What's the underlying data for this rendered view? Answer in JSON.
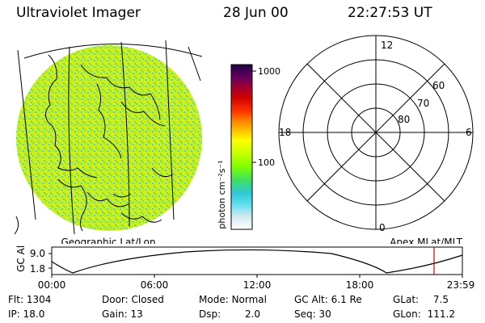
{
  "header": {
    "title": "Ultraviolet Imager",
    "date": "28 Jun 00",
    "time": "22:27:53 UT"
  },
  "globe": {
    "caption": "Geographic Lat/Lon"
  },
  "colorbar": {
    "unit_label": "photon cm⁻²s⁻¹",
    "ticks": [
      "1000",
      "100"
    ],
    "colors": [
      "#ffffff",
      "#d0e8f0",
      "#60e0f0",
      "#30c8d8",
      "#40e060",
      "#80ff00",
      "#c8ff00",
      "#ffff00",
      "#ffc000",
      "#ff8000",
      "#ff3000",
      "#d00000",
      "#a00030",
      "#600060",
      "#200040"
    ]
  },
  "polar": {
    "caption": "Apex MLat/MLT",
    "mlt_labels": {
      "top": "12",
      "left": "18",
      "right": "6",
      "bottom": "0"
    },
    "lat_labels": [
      "60",
      "70",
      "80"
    ]
  },
  "timeline": {
    "ylabel": "GC Alt",
    "yticks": [
      "9.0",
      "1.8"
    ],
    "xticks": [
      "00:00",
      "06:00",
      "12:00",
      "18:00",
      "23:59"
    ],
    "cursor_time": "22:27:53",
    "cursor_color": "#cc0000"
  },
  "info": {
    "row1": [
      {
        "label": "Flt:",
        "value": "1304"
      },
      {
        "label": "Door:",
        "value": "Closed"
      },
      {
        "label": "Mode:",
        "value": "Normal"
      },
      {
        "label": "GC Alt:",
        "value": "6.1 Re"
      },
      {
        "label": "GLat:",
        "value": "7.5"
      }
    ],
    "row2": [
      {
        "label": "IP:",
        "value": "18.0"
      },
      {
        "label": "Gain:",
        "value": "13"
      },
      {
        "label": "Dsp:",
        "value": "2.0"
      },
      {
        "label": "Seq:",
        "value": "30"
      },
      {
        "label": "GLon:",
        "value": "111.2"
      }
    ]
  }
}
